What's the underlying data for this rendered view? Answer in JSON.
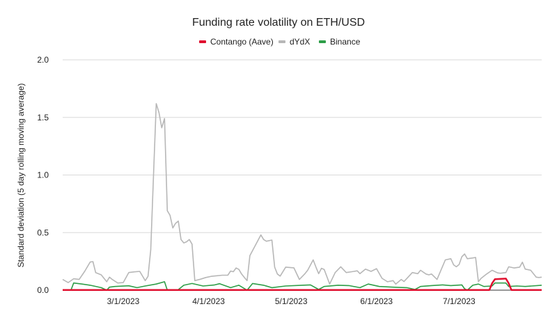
{
  "chart_data": {
    "type": "line",
    "title": "Funding rate volatility on ETH/USD",
    "xlabel": "",
    "ylabel": "Standard deviation (5 day rolling moving average)",
    "xlim": [
      "2023-02-07",
      "2023-07-31"
    ],
    "ylim": [
      0,
      2.0
    ],
    "grid": true,
    "legend_position": "top-center",
    "y_ticks": [
      {
        "value": 0,
        "label": "0.0"
      },
      {
        "value": 0.5,
        "label": "0.5"
      },
      {
        "value": 1.0,
        "label": "1.0"
      },
      {
        "value": 1.5,
        "label": "1.5"
      },
      {
        "value": 2.0,
        "label": "2.0"
      }
    ],
    "x_ticks": [
      {
        "date": "2023-03-01",
        "label": "3/1/2023"
      },
      {
        "date": "2023-04-01",
        "label": "4/1/2023"
      },
      {
        "date": "2023-05-01",
        "label": "5/1/2023"
      },
      {
        "date": "2023-06-01",
        "label": "6/1/2023"
      },
      {
        "date": "2023-07-01",
        "label": "7/1/2023"
      }
    ],
    "series": [
      {
        "name": "Contango (Aave)",
        "color": "#e0102f",
        "points": [
          [
            "2023-02-07",
            0.002
          ],
          [
            "2023-07-12",
            0.002
          ],
          [
            "2023-07-13",
            0.06
          ],
          [
            "2023-07-14",
            0.095
          ],
          [
            "2023-07-18",
            0.1
          ],
          [
            "2023-07-19",
            0.06
          ],
          [
            "2023-07-20",
            0.002
          ],
          [
            "2023-07-31",
            0.002
          ]
        ]
      },
      {
        "name": "dYdX",
        "color": "#b7b7b7",
        "points": [
          [
            "2023-02-07",
            0.093
          ],
          [
            "2023-02-09",
            0.066
          ],
          [
            "2023-02-11",
            0.099
          ],
          [
            "2023-02-13",
            0.093
          ],
          [
            "2023-02-15",
            0.163
          ],
          [
            "2023-02-17",
            0.244
          ],
          [
            "2023-02-18",
            0.248
          ],
          [
            "2023-02-19",
            0.153
          ],
          [
            "2023-02-21",
            0.133
          ],
          [
            "2023-02-23",
            0.073
          ],
          [
            "2023-02-24",
            0.113
          ],
          [
            "2023-02-25",
            0.093
          ],
          [
            "2023-02-27",
            0.062
          ],
          [
            "2023-03-01",
            0.066
          ],
          [
            "2023-03-03",
            0.153
          ],
          [
            "2023-03-05",
            0.159
          ],
          [
            "2023-03-07",
            0.163
          ],
          [
            "2023-03-09",
            0.083
          ],
          [
            "2023-03-10",
            0.12
          ],
          [
            "2023-03-11",
            0.35
          ],
          [
            "2023-03-12",
            1.0
          ],
          [
            "2023-03-13",
            1.62
          ],
          [
            "2023-03-14",
            1.54
          ],
          [
            "2023-03-15",
            1.41
          ],
          [
            "2023-03-16",
            1.49
          ],
          [
            "2023-03-17",
            0.69
          ],
          [
            "2023-03-18",
            0.65
          ],
          [
            "2023-03-19",
            0.54
          ],
          [
            "2023-03-20",
            0.58
          ],
          [
            "2023-03-21",
            0.6
          ],
          [
            "2023-03-22",
            0.44
          ],
          [
            "2023-03-23",
            0.41
          ],
          [
            "2023-03-24",
            0.42
          ],
          [
            "2023-03-25",
            0.44
          ],
          [
            "2023-03-26",
            0.4
          ],
          [
            "2023-03-27",
            0.083
          ],
          [
            "2023-03-29",
            0.095
          ],
          [
            "2023-03-31",
            0.11
          ],
          [
            "2023-04-02",
            0.12
          ],
          [
            "2023-04-04",
            0.125
          ],
          [
            "2023-04-06",
            0.13
          ],
          [
            "2023-04-08",
            0.13
          ],
          [
            "2023-04-09",
            0.166
          ],
          [
            "2023-04-10",
            0.16
          ],
          [
            "2023-04-11",
            0.193
          ],
          [
            "2023-04-12",
            0.18
          ],
          [
            "2023-04-13",
            0.14
          ],
          [
            "2023-04-14",
            0.11
          ],
          [
            "2023-04-15",
            0.083
          ],
          [
            "2023-04-16",
            0.3
          ],
          [
            "2023-04-18",
            0.39
          ],
          [
            "2023-04-20",
            0.48
          ],
          [
            "2023-04-21",
            0.44
          ],
          [
            "2023-04-22",
            0.425
          ],
          [
            "2023-04-24",
            0.435
          ],
          [
            "2023-04-25",
            0.2
          ],
          [
            "2023-04-26",
            0.14
          ],
          [
            "2023-04-27",
            0.122
          ],
          [
            "2023-04-29",
            0.2
          ],
          [
            "2023-05-02",
            0.194
          ],
          [
            "2023-05-04",
            0.093
          ],
          [
            "2023-05-06",
            0.143
          ],
          [
            "2023-05-07",
            0.173
          ],
          [
            "2023-05-09",
            0.263
          ],
          [
            "2023-05-10",
            0.2
          ],
          [
            "2023-05-11",
            0.143
          ],
          [
            "2023-05-12",
            0.19
          ],
          [
            "2023-05-13",
            0.18
          ],
          [
            "2023-05-15",
            0.053
          ],
          [
            "2023-05-17",
            0.153
          ],
          [
            "2023-05-19",
            0.203
          ],
          [
            "2023-05-21",
            0.153
          ],
          [
            "2023-05-23",
            0.16
          ],
          [
            "2023-05-25",
            0.168
          ],
          [
            "2023-05-26",
            0.143
          ],
          [
            "2023-05-28",
            0.183
          ],
          [
            "2023-05-30",
            0.163
          ],
          [
            "2023-06-01",
            0.187
          ],
          [
            "2023-06-03",
            0.103
          ],
          [
            "2023-06-05",
            0.073
          ],
          [
            "2023-06-07",
            0.083
          ],
          [
            "2023-06-08",
            0.053
          ],
          [
            "2023-06-10",
            0.093
          ],
          [
            "2023-06-11",
            0.075
          ],
          [
            "2023-06-14",
            0.153
          ],
          [
            "2023-06-16",
            0.143
          ],
          [
            "2023-06-17",
            0.173
          ],
          [
            "2023-06-19",
            0.14
          ],
          [
            "2023-06-20",
            0.133
          ],
          [
            "2023-06-21",
            0.14
          ],
          [
            "2023-06-23",
            0.093
          ],
          [
            "2023-06-26",
            0.263
          ],
          [
            "2023-06-28",
            0.273
          ],
          [
            "2023-06-29",
            0.22
          ],
          [
            "2023-06-30",
            0.203
          ],
          [
            "2023-07-01",
            0.223
          ],
          [
            "2023-07-02",
            0.29
          ],
          [
            "2023-07-03",
            0.314
          ],
          [
            "2023-07-04",
            0.273
          ],
          [
            "2023-07-06",
            0.28
          ],
          [
            "2023-07-07",
            0.284
          ],
          [
            "2023-07-08",
            0.073
          ],
          [
            "2023-07-09",
            0.103
          ],
          [
            "2023-07-11",
            0.14
          ],
          [
            "2023-07-13",
            0.173
          ],
          [
            "2023-07-15",
            0.15
          ],
          [
            "2023-07-16",
            0.147
          ],
          [
            "2023-07-18",
            0.153
          ],
          [
            "2023-07-19",
            0.203
          ],
          [
            "2023-07-21",
            0.193
          ],
          [
            "2023-07-23",
            0.2
          ],
          [
            "2023-07-24",
            0.243
          ],
          [
            "2023-07-25",
            0.183
          ],
          [
            "2023-07-27",
            0.173
          ],
          [
            "2023-07-29",
            0.113
          ],
          [
            "2023-07-30",
            0.11
          ],
          [
            "2023-07-31",
            0.113
          ]
        ]
      },
      {
        "name": "Binance",
        "color": "#2e9e48",
        "points": [
          [
            "2023-02-07",
            0.0
          ],
          [
            "2023-02-10",
            0.0
          ],
          [
            "2023-02-11",
            0.062
          ],
          [
            "2023-02-14",
            0.053
          ],
          [
            "2023-02-17",
            0.043
          ],
          [
            "2023-02-21",
            0.022
          ],
          [
            "2023-02-23",
            0.0
          ],
          [
            "2023-02-24",
            0.026
          ],
          [
            "2023-02-26",
            0.032
          ],
          [
            "2023-03-03",
            0.038
          ],
          [
            "2023-03-06",
            0.022
          ],
          [
            "2023-03-09",
            0.036
          ],
          [
            "2023-03-13",
            0.053
          ],
          [
            "2023-03-16",
            0.073
          ],
          [
            "2023-03-17",
            0.0
          ],
          [
            "2023-03-21",
            0.005
          ],
          [
            "2023-03-23",
            0.043
          ],
          [
            "2023-03-26",
            0.058
          ],
          [
            "2023-03-30",
            0.036
          ],
          [
            "2023-04-03",
            0.045
          ],
          [
            "2023-04-05",
            0.056
          ],
          [
            "2023-04-09",
            0.022
          ],
          [
            "2023-04-12",
            0.043
          ],
          [
            "2023-04-15",
            0.0
          ],
          [
            "2023-04-17",
            0.058
          ],
          [
            "2023-04-21",
            0.043
          ],
          [
            "2023-04-24",
            0.022
          ],
          [
            "2023-04-29",
            0.036
          ],
          [
            "2023-05-05",
            0.043
          ],
          [
            "2023-05-08",
            0.046
          ],
          [
            "2023-05-11",
            0.006
          ],
          [
            "2023-05-13",
            0.032
          ],
          [
            "2023-05-18",
            0.043
          ],
          [
            "2023-05-22",
            0.04
          ],
          [
            "2023-05-26",
            0.022
          ],
          [
            "2023-05-29",
            0.053
          ],
          [
            "2023-06-02",
            0.032
          ],
          [
            "2023-06-07",
            0.026
          ],
          [
            "2023-06-12",
            0.022
          ],
          [
            "2023-06-15",
            0.006
          ],
          [
            "2023-06-17",
            0.032
          ],
          [
            "2023-06-21",
            0.04
          ],
          [
            "2023-06-25",
            0.046
          ],
          [
            "2023-06-28",
            0.04
          ],
          [
            "2023-07-02",
            0.046
          ],
          [
            "2023-07-03",
            0.012
          ],
          [
            "2023-07-04",
            0.0
          ],
          [
            "2023-07-06",
            0.043
          ],
          [
            "2023-07-08",
            0.053
          ],
          [
            "2023-07-10",
            0.032
          ],
          [
            "2023-07-13",
            0.036
          ],
          [
            "2023-07-14",
            0.062
          ],
          [
            "2023-07-18",
            0.062
          ],
          [
            "2023-07-19",
            0.032
          ],
          [
            "2023-07-22",
            0.036
          ],
          [
            "2023-07-25",
            0.032
          ],
          [
            "2023-07-31",
            0.043
          ]
        ]
      }
    ]
  }
}
